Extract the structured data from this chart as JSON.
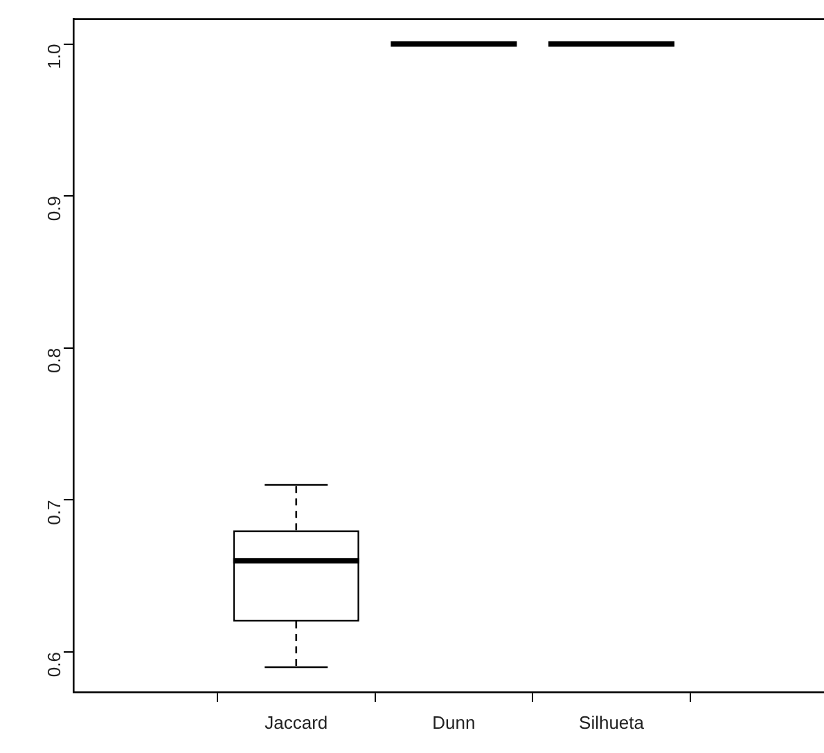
{
  "chart_data": {
    "type": "box",
    "categories": [
      "Jaccard",
      "Dunn",
      "Silhueta"
    ],
    "boxes": [
      {
        "low": 0.59,
        "q1": 0.62,
        "median": 0.66,
        "q3": 0.68,
        "high": 0.71
      },
      {
        "low": 1,
        "q1": 1,
        "median": 1,
        "q3": 1,
        "high": 1
      },
      {
        "low": 1,
        "q1": 1,
        "median": 1,
        "q3": 1,
        "high": 1
      }
    ],
    "ylim": [
      0.5736,
      1.0164
    ],
    "yticks": [
      0.6,
      0.7,
      0.8,
      0.9,
      {
        "value": 1,
        "label": "1.0"
      }
    ],
    "grid": false,
    "legend": false
  }
}
